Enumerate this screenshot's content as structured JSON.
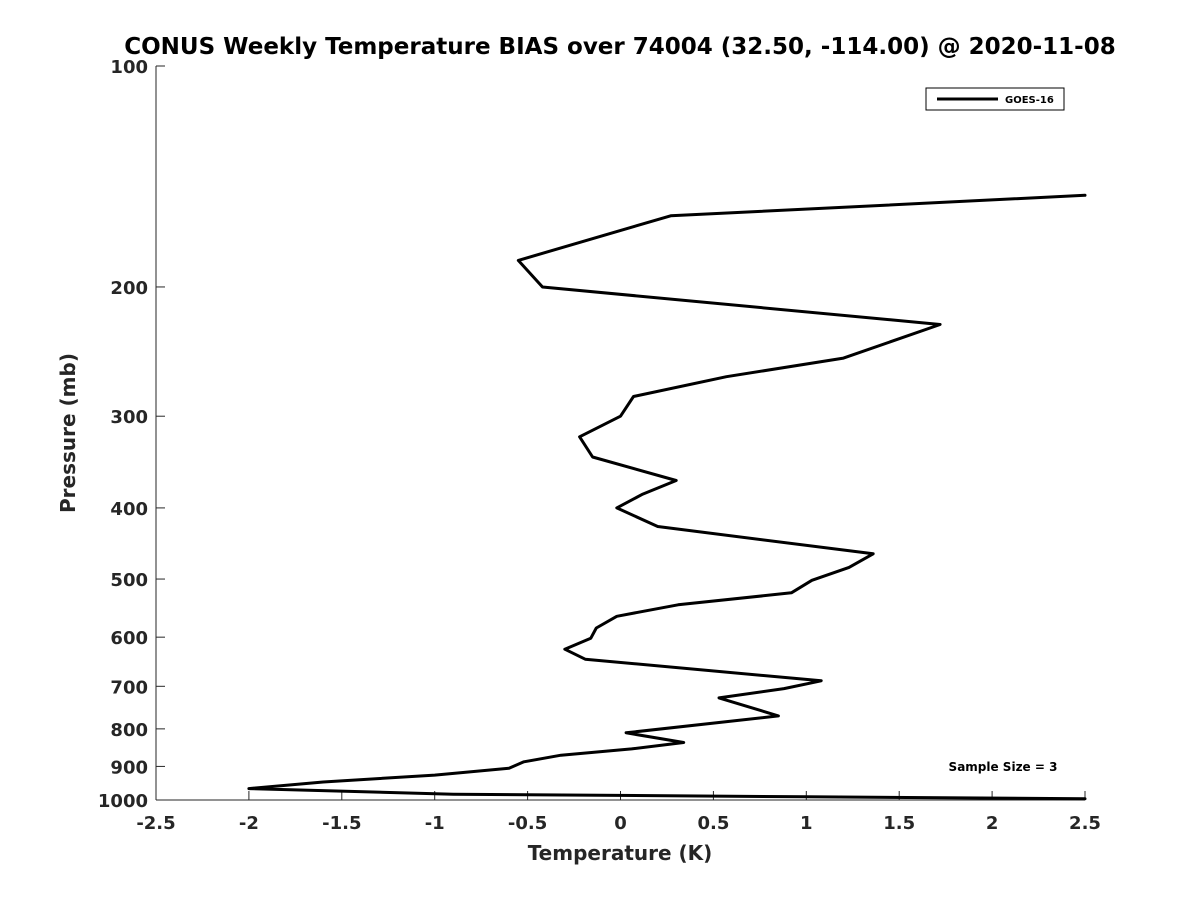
{
  "chart_data": {
    "type": "line",
    "title": "CONUS Weekly Temperature BIAS over 74004 (32.50, -114.00) @ 2020-11-08",
    "xlabel": "Temperature (K)",
    "ylabel": "Pressure (mb)",
    "xlim": [
      -2.5,
      2.5
    ],
    "ylim": [
      100,
      1000
    ],
    "y_scale": "log",
    "y_reversed": true,
    "x_ticks": [
      -2.5,
      -2,
      -1.5,
      -1,
      -0.5,
      0,
      0.5,
      1,
      1.5,
      2,
      2.5
    ],
    "x_tick_labels": [
      "-2.5",
      "-2",
      "-1.5",
      "-1",
      "-0.5",
      "0",
      "0.5",
      "1",
      "1.5",
      "2",
      "2.5"
    ],
    "y_ticks": [
      100,
      200,
      300,
      400,
      500,
      600,
      700,
      800,
      900,
      1000
    ],
    "y_tick_labels": [
      "100",
      "200",
      "300",
      "400",
      "500",
      "600",
      "700",
      "800",
      "900",
      "1000"
    ],
    "grid": false,
    "legend": {
      "placement": "top-right",
      "entries": [
        "GOES-16"
      ]
    },
    "annotation": "Sample Size = 3",
    "series": [
      {
        "name": "GOES-16",
        "color": "#000000",
        "points": [
          {
            "x": 2.5,
            "y": 150
          },
          {
            "x": 0.27,
            "y": 160
          },
          {
            "x": -0.55,
            "y": 184
          },
          {
            "x": -0.42,
            "y": 200
          },
          {
            "x": 1.72,
            "y": 225
          },
          {
            "x": 1.2,
            "y": 250
          },
          {
            "x": 0.57,
            "y": 265
          },
          {
            "x": 0.07,
            "y": 282
          },
          {
            "x": 0.0,
            "y": 300
          },
          {
            "x": -0.22,
            "y": 320
          },
          {
            "x": -0.15,
            "y": 341
          },
          {
            "x": 0.3,
            "y": 367
          },
          {
            "x": 0.12,
            "y": 383
          },
          {
            "x": -0.02,
            "y": 400
          },
          {
            "x": 0.2,
            "y": 424
          },
          {
            "x": 1.36,
            "y": 462
          },
          {
            "x": 1.23,
            "y": 482
          },
          {
            "x": 1.03,
            "y": 502
          },
          {
            "x": 0.92,
            "y": 522
          },
          {
            "x": 0.31,
            "y": 542
          },
          {
            "x": -0.02,
            "y": 562
          },
          {
            "x": -0.13,
            "y": 583
          },
          {
            "x": -0.16,
            "y": 602
          },
          {
            "x": -0.3,
            "y": 623
          },
          {
            "x": -0.19,
            "y": 643
          },
          {
            "x": 1.08,
            "y": 688
          },
          {
            "x": 0.88,
            "y": 705
          },
          {
            "x": 0.53,
            "y": 726
          },
          {
            "x": 0.85,
            "y": 768
          },
          {
            "x": 0.03,
            "y": 810
          },
          {
            "x": 0.34,
            "y": 835
          },
          {
            "x": 0.06,
            "y": 852
          },
          {
            "x": -0.32,
            "y": 869
          },
          {
            "x": -0.52,
            "y": 887
          },
          {
            "x": -0.6,
            "y": 905
          },
          {
            "x": -1.0,
            "y": 925
          },
          {
            "x": -1.6,
            "y": 945
          },
          {
            "x": -2.0,
            "y": 965
          },
          {
            "x": -0.9,
            "y": 982
          },
          {
            "x": 1.0,
            "y": 990
          },
          {
            "x": 2.5,
            "y": 996
          }
        ]
      }
    ]
  }
}
